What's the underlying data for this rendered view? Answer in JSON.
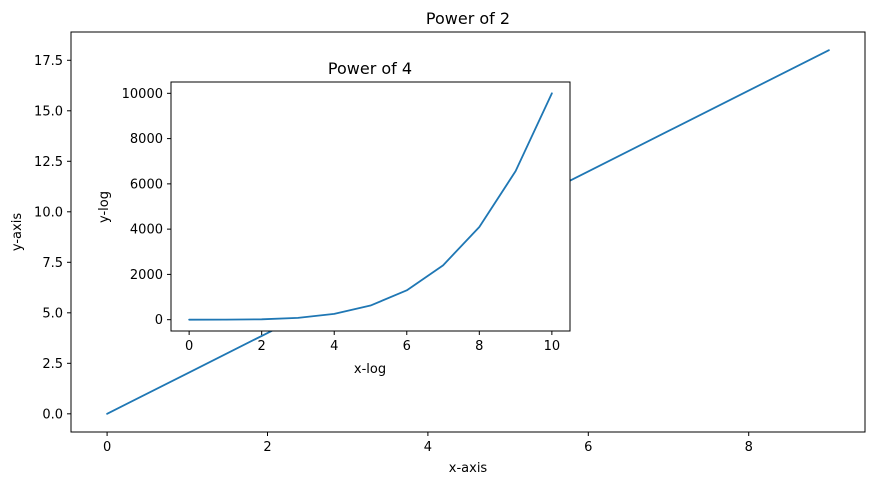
{
  "chart_data": [
    {
      "type": "line",
      "title": "Power of 2",
      "xlabel": "x-axis",
      "ylabel": "y-axis",
      "xlim": [
        -0.45,
        9.45
      ],
      "ylim": [
        -0.9,
        18.9
      ],
      "xticks": [
        0,
        2,
        4,
        6,
        8
      ],
      "xtick_labels": [
        "0",
        "2",
        "4",
        "6",
        "8"
      ],
      "yticks": [
        0,
        2.5,
        5,
        7.5,
        10,
        12.5,
        15,
        17.5
      ],
      "ytick_labels": [
        "0.0",
        "2.5",
        "5.0",
        "7.5",
        "10.0",
        "12.5",
        "15.0",
        "17.5"
      ],
      "grid": false,
      "series": [
        {
          "x": [
            0,
            1,
            2,
            3,
            4,
            5,
            6,
            7,
            8,
            9
          ],
          "y": [
            0,
            2,
            4,
            6,
            8,
            10,
            12,
            14,
            16,
            18
          ],
          "color": "#1f77b4"
        }
      ]
    },
    {
      "type": "line",
      "title": "Power of 4",
      "xlabel": "x-log",
      "ylabel": "y-log",
      "xlim": [
        -0.5,
        10.5
      ],
      "ylim": [
        -500,
        10500
      ],
      "xticks": [
        0,
        2,
        4,
        6,
        8,
        10
      ],
      "xtick_labels": [
        "0",
        "2",
        "4",
        "6",
        "8",
        "10"
      ],
      "yticks": [
        0,
        2000,
        4000,
        6000,
        8000,
        10000
      ],
      "ytick_labels": [
        "0",
        "2000",
        "4000",
        "6000",
        "8000",
        "10000"
      ],
      "grid": false,
      "series": [
        {
          "x": [
            0,
            1,
            2,
            3,
            4,
            5,
            6,
            7,
            8,
            9,
            10
          ],
          "y": [
            0,
            1,
            16,
            81,
            256,
            625,
            1296,
            2401,
            4096,
            6561,
            10000
          ],
          "color": "#1f77b4"
        }
      ]
    }
  ]
}
